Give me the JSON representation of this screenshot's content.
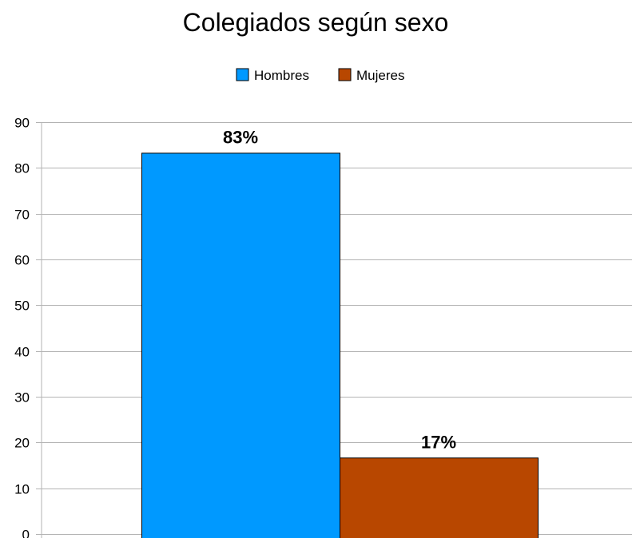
{
  "chart_data": {
    "type": "bar",
    "title": "Colegiados según sexo",
    "xlabel": "",
    "ylabel": "",
    "ylim": [
      0,
      90
    ],
    "yticks": [
      0,
      10,
      20,
      30,
      40,
      50,
      60,
      70,
      80,
      90
    ],
    "grid": true,
    "legend_position": "top-center",
    "series": [
      {
        "name": "Hombres",
        "values": [
          83.3
        ],
        "label": "83%",
        "color": "#0099ff"
      },
      {
        "name": "Mujeres",
        "values": [
          16.7
        ],
        "label": "17%",
        "color": "#b84700"
      }
    ]
  }
}
